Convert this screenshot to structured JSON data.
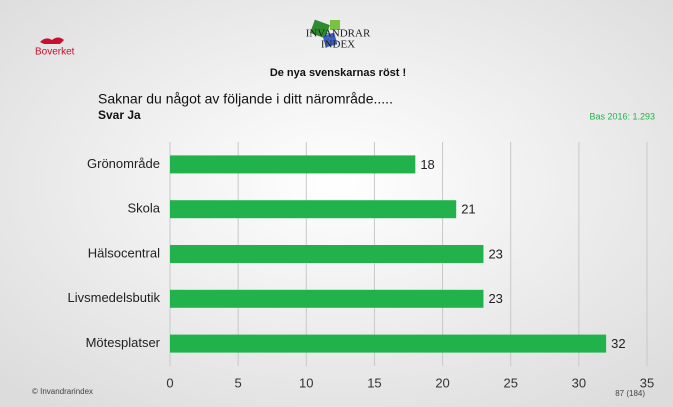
{
  "header": {
    "brand": "Boverket",
    "logo_line1": "INVANDRAR",
    "logo_line2": "INDEX"
  },
  "chart_data": {
    "type": "bar",
    "orientation": "horizontal",
    "title": "De nya svenskarnas röst !",
    "question": "Saknar du något av följande i ditt närområde.....",
    "subtitle": "Svar Ja",
    "base_note": "Bas 2016: 1.293",
    "categories": [
      "Grönområde",
      "Skola",
      "Hälsocentral",
      "Livsmedelsbutik",
      "Mötesplatser"
    ],
    "values": [
      18,
      21,
      23,
      23,
      32
    ],
    "color": "#22b24c",
    "xlim": [
      0,
      35
    ],
    "xticks": [
      0,
      5,
      10,
      15,
      20,
      25,
      30,
      35
    ],
    "grid": true
  },
  "footer": {
    "copyright": "© Invandrarindex",
    "page": "87 (184)"
  }
}
